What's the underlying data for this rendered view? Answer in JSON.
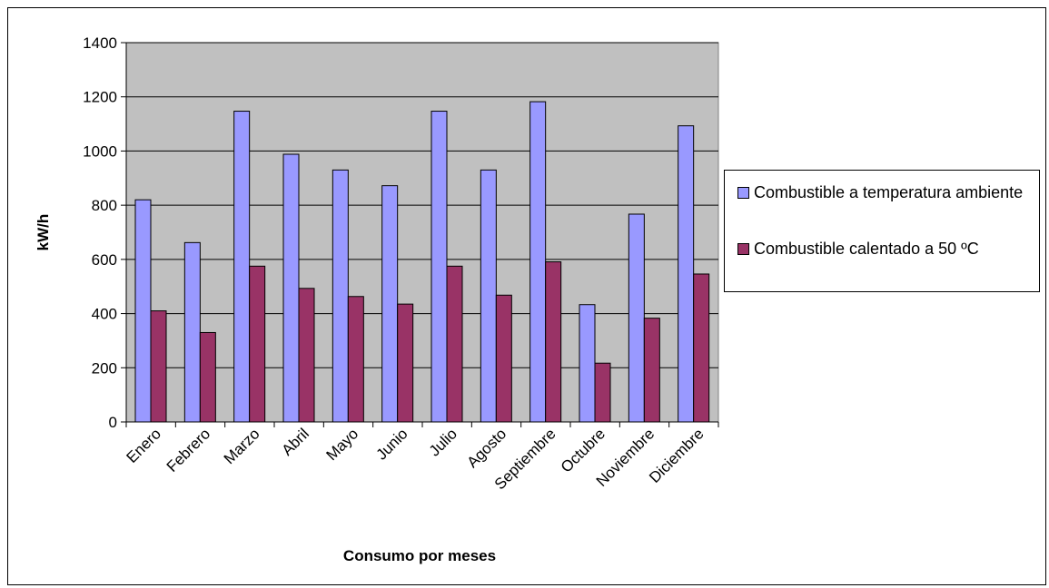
{
  "chart_data": {
    "type": "bar",
    "title": "",
    "xlabel": "Consumo por meses",
    "ylabel": "kW/h",
    "ylim": [
      0,
      1400
    ],
    "yticks": [
      0,
      200,
      400,
      600,
      800,
      1000,
      1200,
      1400
    ],
    "grid": true,
    "legend_position": "right",
    "categories": [
      "Enero",
      "Febrero",
      "Marzo",
      "Abril",
      "Mayo",
      "Junio",
      "Julio",
      "Agosto",
      "Septiembre",
      "Octubre",
      "Noviembre",
      "Diciembre"
    ],
    "series": [
      {
        "name": "Combustible a temperatura ambiente",
        "color": "#9999ff",
        "values": [
          820,
          662,
          1147,
          988,
          930,
          872,
          1147,
          930,
          1182,
          433,
          767,
          1093
        ]
      },
      {
        "name": "Combustible calentado a 50 ºC",
        "color": "#993366",
        "values": [
          410,
          330,
          575,
          493,
          463,
          435,
          575,
          468,
          591,
          217,
          383,
          546
        ]
      }
    ],
    "plot_background": "#c0c0c0"
  }
}
